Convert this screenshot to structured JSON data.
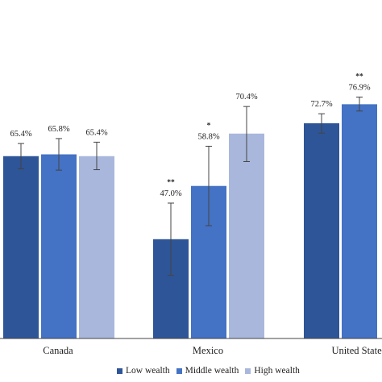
{
  "chart_data": {
    "type": "bar",
    "categories": [
      "Canada",
      "Mexico",
      "United States"
    ],
    "series": [
      {
        "name": "Low wealth",
        "color": "#2e5597",
        "values": [
          65.4,
          47.0,
          72.7
        ],
        "ci": [
          [
            62.6,
            68.2
          ],
          [
            39.0,
            55.0
          ],
          [
            70.5,
            74.8
          ]
        ],
        "labels": [
          "65.4%",
          "47.0%",
          "72.7%"
        ],
        "sig": [
          "",
          "**",
          ""
        ]
      },
      {
        "name": "Middle wealth",
        "color": "#4472c4",
        "values": [
          65.8,
          58.8,
          76.9
        ],
        "ci": [
          [
            62.3,
            69.3
          ],
          [
            50.0,
            67.6
          ],
          [
            75.4,
            78.5
          ]
        ],
        "labels": [
          "65.8%",
          "58.8%",
          "76.9%"
        ],
        "sig": [
          "",
          "*",
          "**"
        ]
      },
      {
        "name": "High wealth",
        "color": "#a9b7dc",
        "values": [
          65.4,
          70.4,
          null
        ],
        "ci": [
          [
            62.4,
            68.5
          ],
          [
            64.2,
            76.4
          ],
          null
        ],
        "labels": [
          "65.4%",
          "70.4%",
          ""
        ],
        "sig": [
          "",
          "",
          ""
        ]
      }
    ],
    "ylim": [
      25,
      100
    ],
    "grid": false,
    "legend_position": "bottom"
  }
}
